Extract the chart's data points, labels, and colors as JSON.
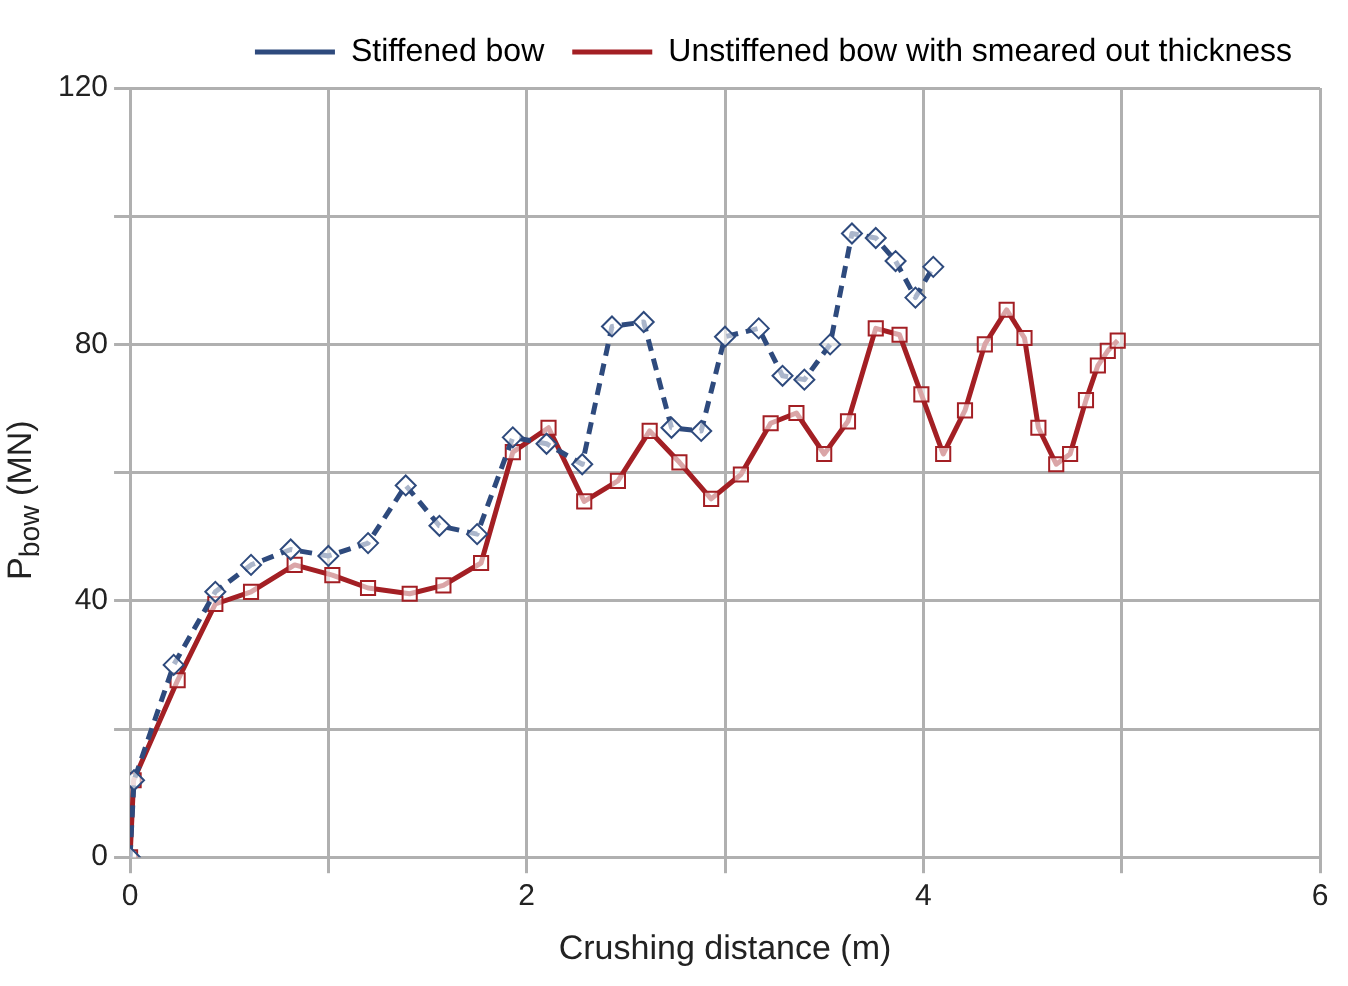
{
  "chart_data": {
    "type": "line",
    "xlabel": "Crushing distance (m)",
    "ylabel": "P$_{bow}$ (MN)",
    "xlim": [
      0,
      6
    ],
    "xticks": [
      0,
      {
        "value": 1,
        "label": null
      },
      2,
      {
        "value": 3,
        "label": null
      },
      4,
      {
        "value": 5,
        "label": null
      },
      6
    ],
    "ylim": [
      0,
      120
    ],
    "yticks": [
      0,
      {
        "value": 20,
        "label": null
      },
      40,
      {
        "value": 60,
        "label": null
      },
      80,
      {
        "value": 100,
        "label": null
      },
      120
    ],
    "grid": true,
    "legend": "top",
    "series": [
      {
        "name": "Stiffened bow",
        "color": "#2e4a7d",
        "marker": "diamond",
        "line_style": "dashed",
        "x": [
          0,
          0.02,
          0.22,
          0.43,
          0.61,
          0.81,
          1.0,
          1.2,
          1.39,
          1.56,
          1.75,
          1.93,
          2.1,
          2.28,
          2.43,
          2.59,
          2.73,
          2.88,
          3.0,
          3.17,
          3.29,
          3.4,
          3.53,
          3.64,
          3.76,
          3.86,
          3.96,
          4.05
        ],
        "values": [
          0,
          12,
          30,
          41.4,
          45.6,
          48,
          47,
          49,
          58,
          51.7,
          50.4,
          65.5,
          64.5,
          61.3,
          82.8,
          83.5,
          67,
          66.5,
          81.2,
          82.5,
          75.1,
          74.5,
          80,
          97.3,
          96.6,
          93,
          87.3,
          92.1
        ]
      },
      {
        "name": "Unstiffened bow with smeared out thickness",
        "color": "#a31f24",
        "marker": "square",
        "line_style": "solid",
        "x": [
          0,
          0.018,
          0.24,
          0.43,
          0.61,
          0.83,
          1.02,
          1.2,
          1.41,
          1.58,
          1.77,
          1.93,
          2.11,
          2.29,
          2.46,
          2.62,
          2.77,
          2.93,
          3.08,
          3.23,
          3.36,
          3.5,
          3.62,
          3.76,
          3.88,
          3.99,
          4.1,
          4.21,
          4.31,
          4.42,
          4.51,
          4.58,
          4.67,
          4.74,
          4.82,
          4.88,
          4.93,
          4.98
        ],
        "values": [
          0,
          12,
          27.6,
          39.5,
          41.4,
          45.6,
          44,
          42,
          41.1,
          42.4,
          45.9,
          63.2,
          67,
          55.5,
          58.7,
          66.5,
          61.6,
          55.9,
          59.7,
          67.7,
          69.3,
          62.9,
          68,
          82.5,
          81.5,
          72.2,
          62.9,
          69.7,
          80,
          85.4,
          81,
          67,
          61.3,
          62.9,
          71.3,
          76.7,
          79,
          80.6
        ]
      }
    ]
  }
}
